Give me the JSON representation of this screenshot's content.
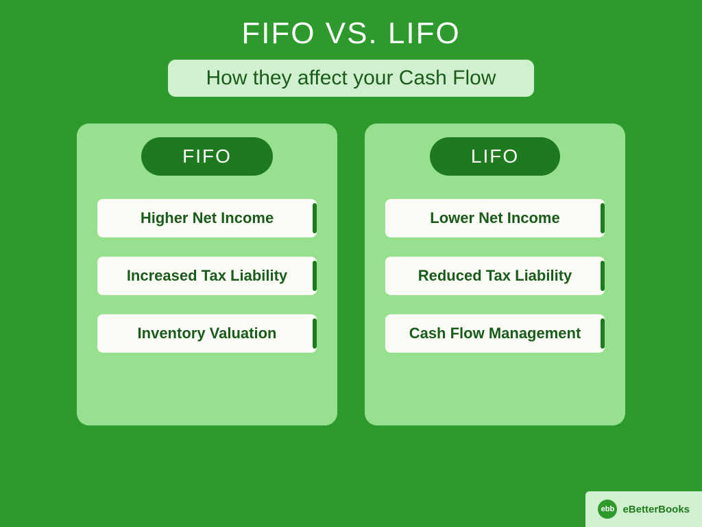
{
  "colors": {
    "page_bg": "#2e9a2e",
    "title_text": "#ffffff",
    "subtitle_pill_bg": "#d1f0cf",
    "subtitle_pill_border": "#2e9a2e",
    "subtitle_text": "#1a5a1a",
    "card_bg": "#97e08f",
    "pill_bg": "#1f7a1f",
    "pill_text": "#ffffff",
    "item_bg": "#fbfcf6",
    "item_text": "#1a5a1a",
    "item_accent": "#1f7a1f",
    "brand_bg": "#d1f0cf",
    "brand_logo_bg": "#2e9a2e",
    "brand_logo_text": "#ffffff",
    "brand_text": "#1f7a1f"
  },
  "typography": {
    "title_fontsize": 44,
    "subtitle_fontsize": 30,
    "card_header_fontsize": 28,
    "item_fontsize": 22,
    "brand_fontsize": 15
  },
  "title": "FIFO VS. LIFO",
  "subtitle": "How they affect your Cash Flow",
  "columns": [
    {
      "header": "FIFO",
      "items": [
        "Higher Net Income",
        "Increased Tax Liability",
        "Inventory Valuation"
      ]
    },
    {
      "header": "LIFO",
      "items": [
        "Lower Net Income",
        "Reduced Tax Liability",
        "Cash Flow Management"
      ]
    }
  ],
  "brand": {
    "logo_text": "ebb",
    "name": "eBetterBooks"
  }
}
